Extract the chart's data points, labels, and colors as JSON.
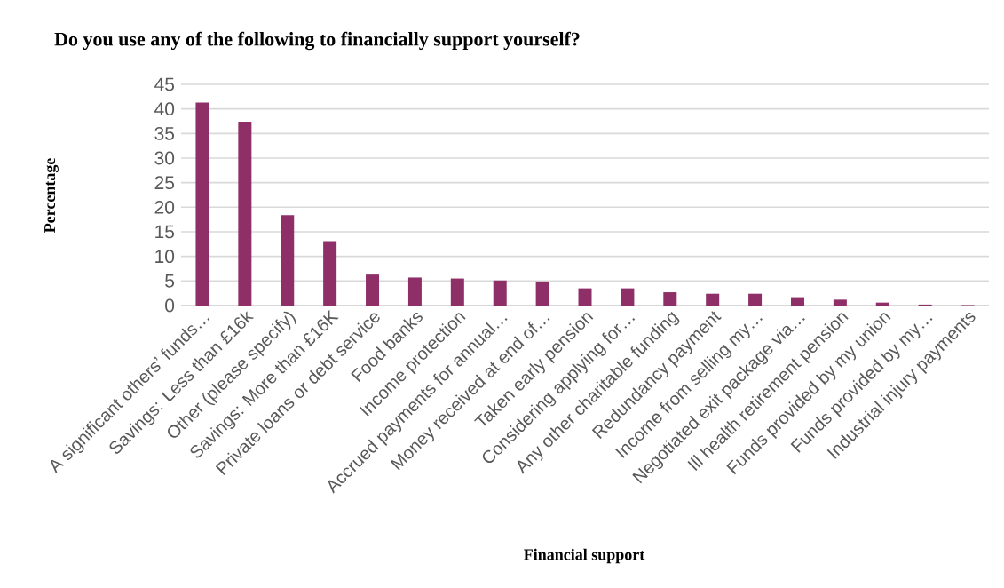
{
  "chart_data": {
    "type": "bar",
    "title": "Do you use any of the following to financially support yourself?",
    "xlabel": "Financial support",
    "ylabel": "Percentage",
    "categories": [
      "A significant others’ funds…",
      "Savings: Less than £16k",
      "Other (please specify)",
      "Savings: More than £16K",
      "Private loans or debt service",
      "Food banks",
      "Income protection",
      "Accrued payments for annual…",
      "Money received at end of…",
      "Taken early pension",
      "Considering applying for…",
      "Any other charitable funding",
      "Redundancy payment",
      "Income from selling my…",
      "Negotiated exit package via…",
      "Ill health retirement pension",
      "Funds provided by my union",
      "Funds provided by my…",
      "Industrial injury payments"
    ],
    "values": [
      41.3,
      37.4,
      18.4,
      13.1,
      6.3,
      5.7,
      5.5,
      5.1,
      4.9,
      3.5,
      3.5,
      2.7,
      2.4,
      2.4,
      1.7,
      1.2,
      0.6,
      0.2,
      0.1
    ],
    "color": "#8e2f67",
    "ylim": [
      0,
      45
    ],
    "yticks": [
      0,
      5,
      10,
      15,
      20,
      25,
      30,
      35,
      40,
      45
    ],
    "grid": "y"
  }
}
